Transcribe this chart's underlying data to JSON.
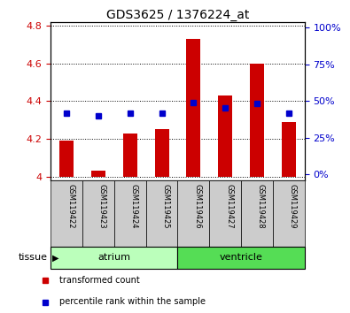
{
  "title": "GDS3625 / 1376224_at",
  "samples": [
    "GSM119422",
    "GSM119423",
    "GSM119424",
    "GSM119425",
    "GSM119426",
    "GSM119427",
    "GSM119428",
    "GSM119429"
  ],
  "transformed_counts": [
    4.19,
    4.03,
    4.23,
    4.25,
    4.73,
    4.43,
    4.6,
    4.29
  ],
  "percentile_ranks": [
    4.335,
    4.32,
    4.335,
    4.335,
    4.392,
    4.365,
    4.39,
    4.335
  ],
  "ylim_left": [
    3.98,
    4.82
  ],
  "yticks_left": [
    4.0,
    4.2,
    4.4,
    4.6,
    4.8
  ],
  "ytick_labels_left": [
    "4",
    "4.2",
    "4.4",
    "4.6",
    "4.8"
  ],
  "ylim_right": [
    -0.04,
    1.04
  ],
  "yticks_right": [
    0.0,
    0.25,
    0.5,
    0.75,
    1.0
  ],
  "ytick_labels_right": [
    "0%",
    "25%",
    "50%",
    "75%",
    "100%"
  ],
  "bar_color": "#cc0000",
  "dot_color": "#0000cc",
  "bar_bottom": 4.0,
  "groups": [
    {
      "label": "atrium",
      "start": 0,
      "end": 4,
      "color": "#bbffbb"
    },
    {
      "label": "ventricle",
      "start": 4,
      "end": 8,
      "color": "#55dd55"
    }
  ],
  "sample_bg_color": "#cccccc",
  "tissue_label": "tissue",
  "legend_items": [
    {
      "label": "transformed count",
      "color": "#cc0000"
    },
    {
      "label": "percentile rank within the sample",
      "color": "#0000cc"
    }
  ],
  "bar_width": 0.45
}
